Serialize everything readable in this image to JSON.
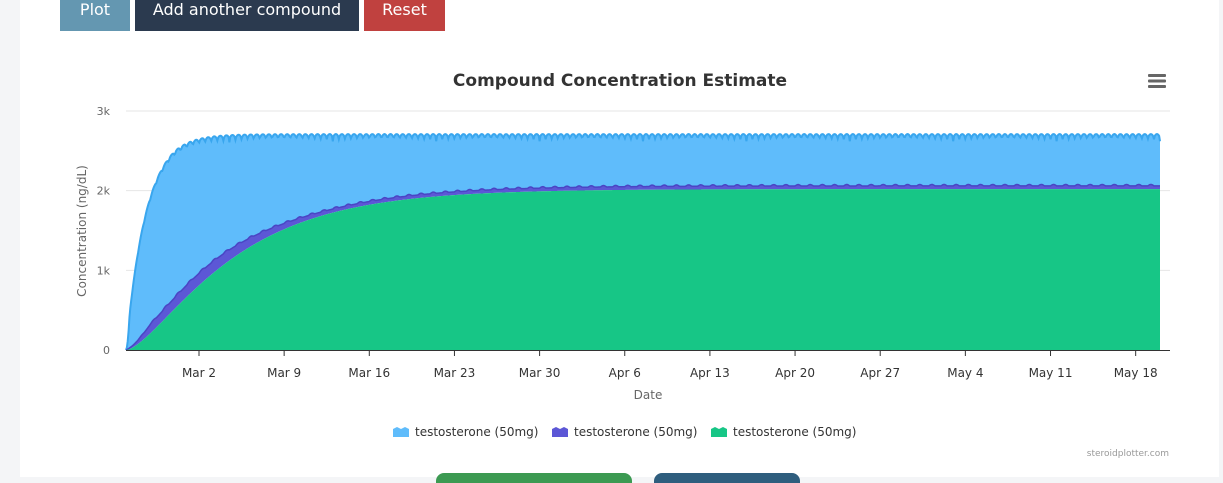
{
  "toolbar": {
    "plot_label": "Plot",
    "add_label": "Add another compound",
    "reset_label": "Reset"
  },
  "colors": {
    "plot_button": "#6497b1",
    "add_button": "#2b3a4f",
    "reset_button": "#c0413f",
    "series1": "#5fbcfb",
    "series1_line": "#39a6ee",
    "series2": "#5c57d6",
    "series3": "#17c686"
  },
  "chart_data": {
    "type": "area",
    "stacked": true,
    "title": "Compound Concentration Estimate",
    "xlabel": "Date",
    "ylabel": "Concentration (ng/dL)",
    "x_range_days": [
      0,
      85
    ],
    "ylim": [
      0,
      3000
    ],
    "yticks": [
      "0",
      "1k",
      "2k",
      "3k"
    ],
    "xticks": [
      {
        "label": "Mar 2",
        "day": 6
      },
      {
        "label": "Mar 9",
        "day": 13
      },
      {
        "label": "Mar 16",
        "day": 20
      },
      {
        "label": "Mar 23",
        "day": 27
      },
      {
        "label": "Mar 30",
        "day": 34
      },
      {
        "label": "Apr 6",
        "day": 41
      },
      {
        "label": "Apr 13",
        "day": 48
      },
      {
        "label": "Apr 20",
        "day": 55
      },
      {
        "label": "Apr 27",
        "day": 62
      },
      {
        "label": "May 4",
        "day": 69
      },
      {
        "label": "May 11",
        "day": 76
      },
      {
        "label": "May 18",
        "day": 83
      }
    ],
    "series": [
      {
        "name": "testosterone (50mg)",
        "steady_state": 560,
        "fast": true
      },
      {
        "name": "testosterone (50mg)",
        "steady_state": 50,
        "fast": false
      },
      {
        "name": "testosterone (50mg)",
        "steady_state": 2020,
        "fast": false
      }
    ],
    "legend_position": "bottom",
    "credit": "steroidplotter.com"
  }
}
